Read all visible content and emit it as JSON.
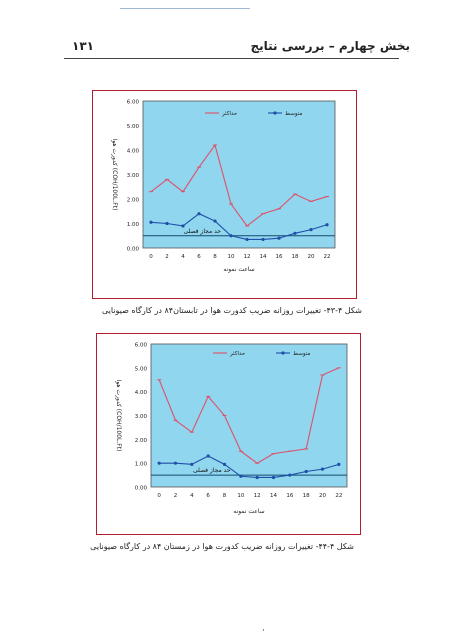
{
  "header": {
    "title": "بخش چهارم – بررسی نتایج",
    "page_number": "۱۳۱"
  },
  "figures": [
    {
      "caption": "شکل ۴-۴۳- تغییرات روزانه ضریب کدورت هوا در تابستان۸۴ در کارگاه صیونایی",
      "colors": {
        "max": "#e0506a",
        "avg": "#1f4fa8",
        "limit": "#134a70",
        "plot_bg": "#8fd6ee"
      },
      "chart_data": {
        "type": "line",
        "x": [
          0,
          2,
          4,
          6,
          8,
          10,
          12,
          14,
          16,
          18,
          20,
          22
        ],
        "xticks": [
          "0",
          "2",
          "4",
          "6",
          "8",
          "10",
          "12",
          "14",
          "16",
          "18",
          "20",
          "22"
        ],
        "yticks": [
          "0.00",
          "1.00",
          "2.00",
          "3.00",
          "4.00",
          "5.00",
          "6.00"
        ],
        "ylim": [
          0,
          6
        ],
        "xlabel": "ساعت نمونه",
        "ylabel": "کدورت هوا (COH/100L.Ft)",
        "legend": [
          "حداکثر",
          "متوسط"
        ],
        "limit_label": "حد مجاز فصلی",
        "limit_value": 0.5,
        "series": [
          {
            "name": "حداکثر",
            "values": [
              2.3,
              2.8,
              2.3,
              3.3,
              4.2,
              1.8,
              0.9,
              1.4,
              1.6,
              2.2,
              1.9,
              2.1
            ]
          },
          {
            "name": "متوسط",
            "values": [
              1.05,
              1.0,
              0.9,
              1.4,
              1.1,
              0.5,
              0.35,
              0.35,
              0.4,
              0.6,
              0.75,
              0.95
            ]
          }
        ]
      }
    },
    {
      "caption": "شکل ۴-۴۴- تغییرات روزانه ضریب کدورت هوا در زمستان ۸۴ در کارگاه صیونایی",
      "colors": {
        "max": "#e0506a",
        "avg": "#1f4fa8",
        "limit": "#134a70",
        "plot_bg": "#8fd6ee"
      },
      "chart_data": {
        "type": "line",
        "x": [
          0,
          2,
          4,
          6,
          8,
          10,
          12,
          14,
          16,
          18,
          20,
          22
        ],
        "xticks": [
          "0",
          "2",
          "4",
          "6",
          "8",
          "10",
          "12",
          "14",
          "16",
          "18",
          "20",
          "22"
        ],
        "yticks": [
          "0.00",
          "1.00",
          "2.00",
          "3.00",
          "4.00",
          "5.00",
          "6.00"
        ],
        "ylim": [
          0,
          6
        ],
        "xlabel": "ساعت نمونه",
        "ylabel": "کدورت هوا (COH/100L.Ft)",
        "legend": [
          "حداکثر",
          "متوسط"
        ],
        "limit_label": "حد مجاز فصلی",
        "limit_value": 0.5,
        "series": [
          {
            "name": "حداکثر",
            "values": [
              4.5,
              2.8,
              2.3,
              3.8,
              3.0,
              1.5,
              1.0,
              1.4,
              1.5,
              1.6,
              4.7,
              5.0
            ]
          },
          {
            "name": "متوسط",
            "values": [
              1.0,
              1.0,
              0.95,
              1.3,
              0.95,
              0.45,
              0.4,
              0.4,
              0.5,
              0.65,
              0.75,
              0.95
            ]
          }
        ]
      }
    }
  ]
}
